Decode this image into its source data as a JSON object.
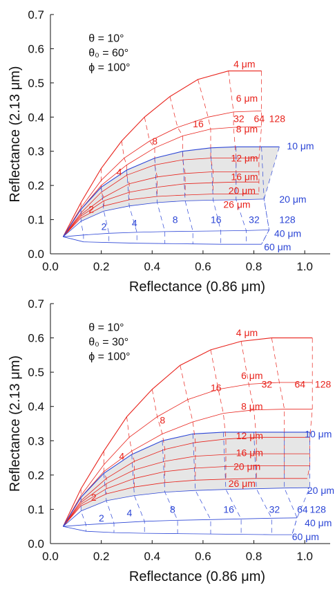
{
  "chart_data": [
    {
      "type": "line",
      "panel": "top",
      "xlabel": "Reflectance (0.86 μm)",
      "ylabel": "Reflectance (2.13 μm)",
      "xlim": [
        0.0,
        1.1
      ],
      "ylim": [
        0.0,
        0.7
      ],
      "xticks": [
        "0.0",
        "0.2",
        "0.4",
        "0.6",
        "0.8",
        "1.0"
      ],
      "yticks": [
        "0.0",
        "0.1",
        "0.2",
        "0.3",
        "0.4",
        "0.5",
        "0.6",
        "0.7"
      ],
      "params": [
        "θ = 10°",
        "θ₀ = 60°",
        "ϕ = 100°"
      ],
      "colors": {
        "ice": "#e8211a",
        "water": "#2b45d6",
        "shade": "#e6e6e6"
      },
      "origin": [
        0.05,
        0.05
      ],
      "tau_values": [
        2,
        4,
        8,
        16,
        32,
        64,
        128
      ],
      "ice_labels": [
        "4 μm",
        "6 μm",
        "8 μm",
        "12 μm",
        "16 μm",
        "20 μm",
        "26 μm"
      ],
      "water_labels": [
        "10 μm",
        "20 μm",
        "40 μm",
        "60 μm"
      ],
      "ice_tau_labels": [
        "2",
        "4",
        "8",
        "16",
        "32",
        "64",
        "128"
      ],
      "water_tau_labels": [
        "2",
        "4",
        "8",
        "16",
        "32",
        "128"
      ],
      "ice_curves": [
        {
          "name": "4 μm",
          "points": [
            [
              0.05,
              0.05
            ],
            [
              0.12,
              0.15
            ],
            [
              0.2,
              0.25
            ],
            [
              0.28,
              0.33
            ],
            [
              0.37,
              0.4
            ],
            [
              0.47,
              0.46
            ],
            [
              0.58,
              0.51
            ],
            [
              0.7,
              0.535
            ],
            [
              0.83,
              0.535
            ]
          ]
        },
        {
          "name": "6 μm",
          "points": [
            [
              0.05,
              0.05
            ],
            [
              0.12,
              0.135
            ],
            [
              0.2,
              0.215
            ],
            [
              0.29,
              0.28
            ],
            [
              0.39,
              0.33
            ],
            [
              0.5,
              0.37
            ],
            [
              0.62,
              0.4
            ],
            [
              0.72,
              0.415
            ],
            [
              0.83,
              0.418
            ]
          ]
        },
        {
          "name": "8 μm",
          "points": [
            [
              0.05,
              0.05
            ],
            [
              0.12,
              0.13
            ],
            [
              0.2,
              0.2
            ],
            [
              0.3,
              0.26
            ],
            [
              0.41,
              0.31
            ],
            [
              0.52,
              0.345
            ],
            [
              0.63,
              0.365
            ],
            [
              0.72,
              0.37
            ],
            [
              0.83,
              0.372
            ]
          ]
        },
        {
          "name": "12 μm",
          "points": [
            [
              0.05,
              0.05
            ],
            [
              0.12,
              0.12
            ],
            [
              0.2,
              0.18
            ],
            [
              0.3,
              0.23
            ],
            [
              0.41,
              0.26
            ],
            [
              0.52,
              0.275
            ],
            [
              0.63,
              0.28
            ],
            [
              0.73,
              0.28
            ],
            [
              0.82,
              0.28
            ]
          ]
        },
        {
          "name": "16 μm",
          "points": [
            [
              0.05,
              0.05
            ],
            [
              0.12,
              0.115
            ],
            [
              0.21,
              0.165
            ],
            [
              0.31,
              0.205
            ],
            [
              0.42,
              0.225
            ],
            [
              0.53,
              0.235
            ],
            [
              0.64,
              0.24
            ],
            [
              0.73,
              0.24
            ],
            [
              0.82,
              0.24
            ]
          ]
        },
        {
          "name": "20 μm",
          "points": [
            [
              0.05,
              0.05
            ],
            [
              0.12,
              0.11
            ],
            [
              0.21,
              0.155
            ],
            [
              0.31,
              0.18
            ],
            [
              0.42,
              0.195
            ],
            [
              0.53,
              0.205
            ],
            [
              0.64,
              0.208
            ],
            [
              0.73,
              0.21
            ],
            [
              0.82,
              0.21
            ]
          ]
        },
        {
          "name": "26 μm",
          "points": [
            [
              0.05,
              0.05
            ],
            [
              0.12,
              0.105
            ],
            [
              0.21,
              0.14
            ],
            [
              0.31,
              0.158
            ],
            [
              0.42,
              0.168
            ],
            [
              0.53,
              0.172
            ],
            [
              0.64,
              0.175
            ],
            [
              0.73,
              0.175
            ],
            [
              0.82,
              0.175
            ]
          ]
        }
      ],
      "water_curves": [
        {
          "name": "10 μm",
          "points": [
            [
              0.05,
              0.05
            ],
            [
              0.12,
              0.13
            ],
            [
              0.2,
              0.195
            ],
            [
              0.3,
              0.245
            ],
            [
              0.41,
              0.28
            ],
            [
              0.52,
              0.3
            ],
            [
              0.63,
              0.31
            ],
            [
              0.73,
              0.313
            ],
            [
              0.83,
              0.313
            ],
            [
              0.9,
              0.313
            ]
          ]
        },
        {
          "name": "20 μm",
          "points": [
            [
              0.05,
              0.05
            ],
            [
              0.12,
              0.095
            ],
            [
              0.21,
              0.125
            ],
            [
              0.31,
              0.14
            ],
            [
              0.42,
              0.15
            ],
            [
              0.53,
              0.155
            ],
            [
              0.64,
              0.157
            ],
            [
              0.73,
              0.158
            ],
            [
              0.84,
              0.16
            ]
          ]
        },
        {
          "name": "40 μm",
          "points": [
            [
              0.05,
              0.05
            ],
            [
              0.13,
              0.055
            ],
            [
              0.23,
              0.06
            ],
            [
              0.34,
              0.063
            ],
            [
              0.45,
              0.065
            ],
            [
              0.56,
              0.066
            ],
            [
              0.67,
              0.067
            ],
            [
              0.77,
              0.068
            ],
            [
              0.86,
              0.07
            ]
          ]
        },
        {
          "name": "60 μm",
          "points": [
            [
              0.05,
              0.05
            ],
            [
              0.13,
              0.035
            ],
            [
              0.23,
              0.033
            ],
            [
              0.34,
              0.031
            ],
            [
              0.45,
              0.03
            ],
            [
              0.56,
              0.029
            ],
            [
              0.67,
              0.028
            ],
            [
              0.77,
              0.028
            ],
            [
              0.83,
              0.028
            ]
          ]
        }
      ]
    },
    {
      "type": "line",
      "panel": "bottom",
      "xlabel": "Reflectance (0.86 μm)",
      "ylabel": "Reflectance (2.13 μm)",
      "xlim": [
        0.0,
        1.1
      ],
      "ylim": [
        0.0,
        0.7
      ],
      "xticks": [
        "0.0",
        "0.2",
        "0.4",
        "0.6",
        "0.8",
        "1.0"
      ],
      "yticks": [
        "0.0",
        "0.1",
        "0.2",
        "0.3",
        "0.4",
        "0.5",
        "0.6",
        "0.7"
      ],
      "params": [
        "θ = 10°",
        "θ₀ = 30°",
        "ϕ = 100°"
      ],
      "colors": {
        "ice": "#e8211a",
        "water": "#2b45d6",
        "shade": "#e6e6e6"
      },
      "origin": [
        0.05,
        0.05
      ],
      "tau_values": [
        2,
        4,
        8,
        16,
        32,
        64,
        128
      ],
      "ice_labels": [
        "4 μm",
        "6 μm",
        "8 μm",
        "12 μm",
        "16 μm",
        "20 μm",
        "26 μm"
      ],
      "water_labels": [
        "10 μm",
        "20 μm",
        "40 μm",
        "60 μm"
      ],
      "ice_tau_labels": [
        "2",
        "4",
        "8",
        "16",
        "32",
        "64",
        "128"
      ],
      "water_tau_labels": [
        "2",
        "4",
        "8",
        "16",
        "32",
        "64",
        "128"
      ],
      "ice_curves": [
        {
          "name": "4 μm",
          "points": [
            [
              0.05,
              0.05
            ],
            [
              0.12,
              0.16
            ],
            [
              0.21,
              0.27
            ],
            [
              0.3,
              0.37
            ],
            [
              0.4,
              0.45
            ],
            [
              0.51,
              0.52
            ],
            [
              0.63,
              0.565
            ],
            [
              0.75,
              0.59
            ],
            [
              0.87,
              0.6
            ],
            [
              1.03,
              0.6
            ]
          ]
        },
        {
          "name": "6 μm",
          "points": [
            [
              0.05,
              0.05
            ],
            [
              0.12,
              0.14
            ],
            [
              0.21,
              0.23
            ],
            [
              0.31,
              0.31
            ],
            [
              0.42,
              0.37
            ],
            [
              0.54,
              0.42
            ],
            [
              0.66,
              0.45
            ],
            [
              0.78,
              0.465
            ],
            [
              0.9,
              0.47
            ],
            [
              1.03,
              0.47
            ]
          ]
        },
        {
          "name": "8 μm",
          "points": [
            [
              0.05,
              0.05
            ],
            [
              0.12,
              0.135
            ],
            [
              0.21,
              0.21
            ],
            [
              0.32,
              0.27
            ],
            [
              0.44,
              0.32
            ],
            [
              0.56,
              0.355
            ],
            [
              0.68,
              0.38
            ],
            [
              0.8,
              0.39
            ],
            [
              0.92,
              0.392
            ],
            [
              1.03,
              0.392
            ]
          ]
        },
        {
          "name": "12 μm",
          "points": [
            [
              0.05,
              0.05
            ],
            [
              0.12,
              0.125
            ],
            [
              0.22,
              0.19
            ],
            [
              0.33,
              0.24
            ],
            [
              0.45,
              0.275
            ],
            [
              0.57,
              0.295
            ],
            [
              0.69,
              0.305
            ],
            [
              0.81,
              0.31
            ],
            [
              0.92,
              0.31
            ],
            [
              1.02,
              0.31
            ]
          ]
        },
        {
          "name": "16 μm",
          "points": [
            [
              0.05,
              0.05
            ],
            [
              0.12,
              0.12
            ],
            [
              0.22,
              0.175
            ],
            [
              0.33,
              0.215
            ],
            [
              0.45,
              0.24
            ],
            [
              0.57,
              0.255
            ],
            [
              0.69,
              0.26
            ],
            [
              0.81,
              0.262
            ],
            [
              0.92,
              0.262
            ],
            [
              1.02,
              0.262
            ]
          ]
        },
        {
          "name": "20 μm",
          "points": [
            [
              0.05,
              0.05
            ],
            [
              0.12,
              0.115
            ],
            [
              0.22,
              0.16
            ],
            [
              0.33,
              0.19
            ],
            [
              0.45,
              0.21
            ],
            [
              0.57,
              0.22
            ],
            [
              0.69,
              0.225
            ],
            [
              0.81,
              0.227
            ],
            [
              0.92,
              0.227
            ],
            [
              1.02,
              0.227
            ]
          ]
        },
        {
          "name": "26 μm",
          "points": [
            [
              0.05,
              0.05
            ],
            [
              0.12,
              0.11
            ],
            [
              0.22,
              0.145
            ],
            [
              0.33,
              0.165
            ],
            [
              0.45,
              0.178
            ],
            [
              0.57,
              0.185
            ],
            [
              0.69,
              0.188
            ],
            [
              0.81,
              0.19
            ],
            [
              0.92,
              0.19
            ],
            [
              1.01,
              0.19
            ]
          ]
        }
      ],
      "water_curves": [
        {
          "name": "10 μm",
          "points": [
            [
              0.05,
              0.05
            ],
            [
              0.12,
              0.135
            ],
            [
              0.21,
              0.205
            ],
            [
              0.32,
              0.26
            ],
            [
              0.44,
              0.3
            ],
            [
              0.56,
              0.32
            ],
            [
              0.68,
              0.325
            ],
            [
              0.8,
              0.325
            ],
            [
              0.92,
              0.325
            ],
            [
              1.02,
              0.325
            ]
          ]
        },
        {
          "name": "20 μm",
          "points": [
            [
              0.05,
              0.05
            ],
            [
              0.12,
              0.095
            ],
            [
              0.22,
              0.125
            ],
            [
              0.33,
              0.14
            ],
            [
              0.45,
              0.15
            ],
            [
              0.57,
              0.155
            ],
            [
              0.69,
              0.158
            ],
            [
              0.81,
              0.16
            ],
            [
              0.92,
              0.162
            ],
            [
              1.02,
              0.163
            ]
          ]
        },
        {
          "name": "40 μm",
          "points": [
            [
              0.05,
              0.05
            ],
            [
              0.14,
              0.055
            ],
            [
              0.25,
              0.06
            ],
            [
              0.37,
              0.065
            ],
            [
              0.5,
              0.068
            ],
            [
              0.63,
              0.07
            ],
            [
              0.75,
              0.072
            ],
            [
              0.87,
              0.074
            ],
            [
              0.97,
              0.075
            ]
          ]
        },
        {
          "name": "60 μm",
          "points": [
            [
              0.05,
              0.05
            ],
            [
              0.14,
              0.036
            ],
            [
              0.25,
              0.032
            ],
            [
              0.37,
              0.03
            ],
            [
              0.5,
              0.029
            ],
            [
              0.63,
              0.028
            ],
            [
              0.75,
              0.027
            ],
            [
              0.87,
              0.026
            ],
            [
              0.95,
              0.026
            ]
          ]
        }
      ]
    }
  ]
}
